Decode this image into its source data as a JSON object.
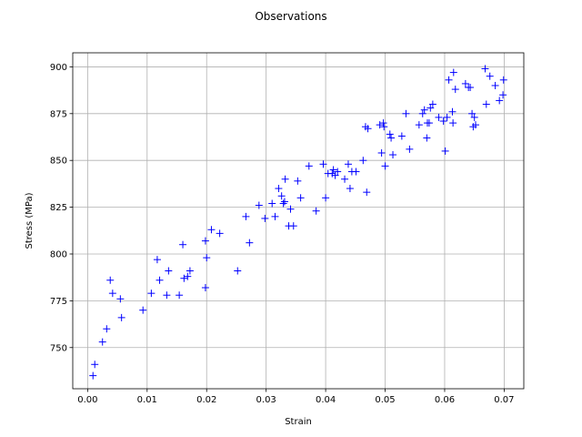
{
  "chart_data": {
    "type": "scatter",
    "title": "Observations",
    "xlabel": "Strain",
    "ylabel": "Stress (MPa)",
    "xlim": [
      -0.0025,
      0.0733
    ],
    "ylim": [
      728.0,
      907.5
    ],
    "xticks": [
      0.0,
      0.01,
      0.02,
      0.03,
      0.04,
      0.05,
      0.06,
      0.07
    ],
    "xtick_labels": [
      "0.00",
      "0.01",
      "0.02",
      "0.03",
      "0.04",
      "0.05",
      "0.06",
      "0.07"
    ],
    "yticks": [
      750,
      775,
      800,
      825,
      850,
      875,
      900
    ],
    "ytick_labels": [
      "750",
      "775",
      "800",
      "825",
      "850",
      "875",
      "900"
    ],
    "grid": true,
    "marker": "+",
    "color": "#0000ff",
    "series": [
      {
        "points": [
          [
            0.0009,
            735
          ],
          [
            0.0012,
            741
          ],
          [
            0.0025,
            753
          ],
          [
            0.0032,
            760
          ],
          [
            0.0038,
            786
          ],
          [
            0.0042,
            779
          ],
          [
            0.0055,
            776
          ],
          [
            0.0057,
            766
          ],
          [
            0.0093,
            770
          ],
          [
            0.0107,
            779
          ],
          [
            0.0117,
            797
          ],
          [
            0.0121,
            786
          ],
          [
            0.0133,
            778
          ],
          [
            0.0136,
            791
          ],
          [
            0.0154,
            778
          ],
          [
            0.016,
            805
          ],
          [
            0.0162,
            787
          ],
          [
            0.0168,
            788
          ],
          [
            0.0172,
            791
          ],
          [
            0.0198,
            807
          ],
          [
            0.0198,
            782
          ],
          [
            0.02,
            798
          ],
          [
            0.0208,
            813
          ],
          [
            0.0222,
            811
          ],
          [
            0.0252,
            791
          ],
          [
            0.0266,
            820
          ],
          [
            0.0272,
            806
          ],
          [
            0.0288,
            826
          ],
          [
            0.0298,
            819
          ],
          [
            0.031,
            827
          ],
          [
            0.0315,
            820
          ],
          [
            0.0321,
            835
          ],
          [
            0.0326,
            831
          ],
          [
            0.0329,
            827
          ],
          [
            0.0331,
            828
          ],
          [
            0.0332,
            840
          ],
          [
            0.0338,
            815
          ],
          [
            0.0341,
            824
          ],
          [
            0.0346,
            815
          ],
          [
            0.0353,
            839
          ],
          [
            0.0358,
            830
          ],
          [
            0.0372,
            847
          ],
          [
            0.0384,
            823
          ],
          [
            0.0396,
            848
          ],
          [
            0.04,
            830
          ],
          [
            0.0404,
            843
          ],
          [
            0.0411,
            843
          ],
          [
            0.0413,
            845
          ],
          [
            0.0416,
            842
          ],
          [
            0.042,
            844
          ],
          [
            0.0432,
            840
          ],
          [
            0.0438,
            848
          ],
          [
            0.0441,
            835
          ],
          [
            0.0444,
            844
          ],
          [
            0.0451,
            844
          ],
          [
            0.0463,
            850
          ],
          [
            0.0467,
            868
          ],
          [
            0.0469,
            833
          ],
          [
            0.0471,
            867
          ],
          [
            0.0491,
            869
          ],
          [
            0.0494,
            854
          ],
          [
            0.0497,
            870
          ],
          [
            0.0498,
            868
          ],
          [
            0.05,
            847
          ],
          [
            0.0508,
            864
          ],
          [
            0.051,
            862
          ],
          [
            0.0513,
            853
          ],
          [
            0.0528,
            863
          ],
          [
            0.0535,
            875
          ],
          [
            0.0541,
            856
          ],
          [
            0.0557,
            869
          ],
          [
            0.0563,
            875
          ],
          [
            0.0566,
            877
          ],
          [
            0.057,
            862
          ],
          [
            0.0571,
            870
          ],
          [
            0.0574,
            870
          ],
          [
            0.0576,
            878
          ],
          [
            0.058,
            880
          ],
          [
            0.059,
            873
          ],
          [
            0.0598,
            871
          ],
          [
            0.0601,
            855
          ],
          [
            0.0604,
            873
          ],
          [
            0.0607,
            893
          ],
          [
            0.0613,
            876
          ],
          [
            0.0614,
            870
          ],
          [
            0.0615,
            897
          ],
          [
            0.0618,
            888
          ],
          [
            0.0635,
            891
          ],
          [
            0.064,
            889
          ],
          [
            0.0643,
            889
          ],
          [
            0.0646,
            875
          ],
          [
            0.0648,
            868
          ],
          [
            0.065,
            873
          ],
          [
            0.0652,
            869
          ],
          [
            0.0668,
            899
          ],
          [
            0.067,
            880
          ],
          [
            0.0676,
            895
          ],
          [
            0.0685,
            890
          ],
          [
            0.0692,
            882
          ],
          [
            0.0698,
            885
          ],
          [
            0.0699,
            893
          ]
        ]
      }
    ]
  }
}
